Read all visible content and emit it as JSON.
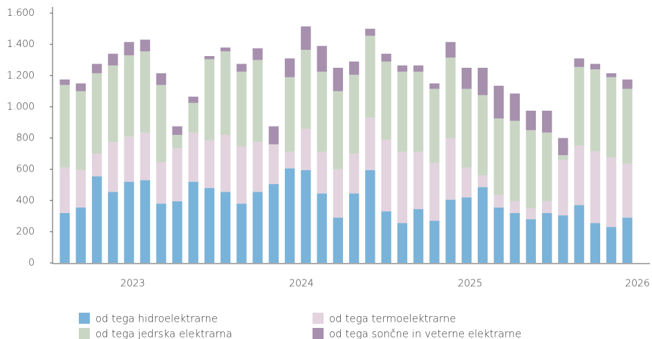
{
  "chart_data": {
    "type": "stacked_bar",
    "categories": [
      null,
      null,
      null,
      null,
      null,
      null,
      null,
      null,
      null,
      null,
      null,
      null,
      null,
      null,
      null,
      null,
      null,
      null,
      null,
      null,
      null,
      null,
      null,
      null,
      null,
      null,
      null,
      null,
      null,
      null,
      null,
      null,
      null,
      null,
      null,
      null
    ],
    "year_labels": [
      "2023",
      "2024",
      "2025",
      "2026"
    ],
    "series": [
      {
        "name": "od tega hidroelektrarne",
        "color": "#7ab3d9",
        "values": [
          320,
          355,
          555,
          455,
          520,
          530,
          380,
          395,
          520,
          480,
          455,
          380,
          455,
          505,
          605,
          595,
          445,
          290,
          445,
          595,
          330,
          255,
          345,
          270,
          405,
          420,
          485,
          355,
          320,
          280,
          320,
          305,
          370,
          255,
          230,
          290
        ]
      },
      {
        "name": "od tega termoelektrarne",
        "color": "#e2d3de",
        "values": [
          290,
          240,
          145,
          320,
          290,
          305,
          265,
          340,
          315,
          305,
          365,
          365,
          320,
          255,
          105,
          265,
          265,
          310,
          255,
          335,
          460,
          455,
          365,
          370,
          395,
          190,
          75,
          80,
          75,
          70,
          75,
          355,
          380,
          460,
          445,
          345
        ]
      },
      {
        "name": "od tega jedrska elektrarna",
        "color": "#c9d6c4",
        "values": [
          530,
          505,
          515,
          490,
          520,
          520,
          495,
          85,
          190,
          520,
          535,
          480,
          525,
          0,
          480,
          505,
          515,
          500,
          505,
          525,
          500,
          515,
          515,
          475,
          515,
          505,
          515,
          490,
          515,
          500,
          440,
          30,
          505,
          525,
          515,
          480
        ]
      },
      {
        "name": "od tega sončne in veterne elektrarne",
        "color": "#a78fae",
        "values": [
          35,
          50,
          60,
          75,
          85,
          75,
          75,
          55,
          40,
          20,
          25,
          50,
          75,
          115,
          120,
          150,
          165,
          150,
          85,
          45,
          50,
          40,
          40,
          35,
          100,
          135,
          175,
          210,
          175,
          125,
          140,
          110,
          55,
          35,
          25,
          60
        ]
      }
    ],
    "ylim": [
      0,
      1600
    ],
    "yticks": [
      0,
      200,
      400,
      600,
      800,
      {
        "value": 1000,
        "label": "1.000"
      },
      {
        "value": 1200,
        "label": "1.200"
      },
      {
        "value": 1400,
        "label": "1.400"
      },
      {
        "value": 1600,
        "label": "1.600"
      }
    ],
    "grid": false
  }
}
